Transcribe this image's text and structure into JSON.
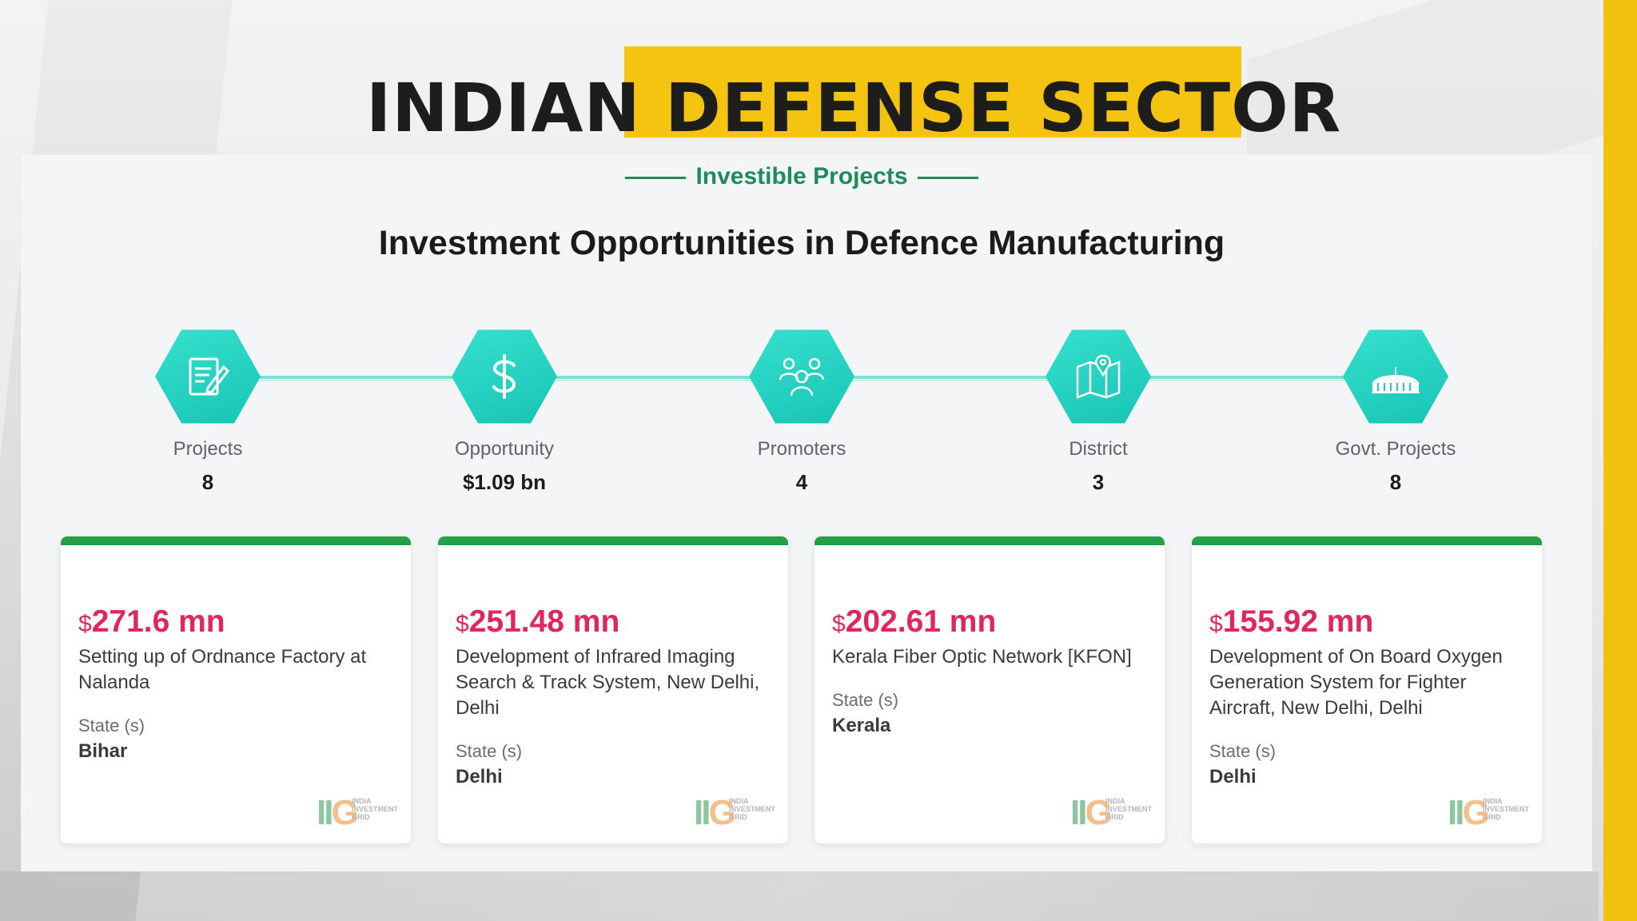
{
  "header": {
    "title": "INDIAN DEFENSE SECTOR",
    "accent_color": "#f5c410"
  },
  "section": {
    "eyebrow": "Investible Projects",
    "heading": "Investment Opportunities in Defence Manufacturing"
  },
  "stats": [
    {
      "label": "Projects",
      "value": "8",
      "icon": "document-edit-icon"
    },
    {
      "label": "Opportunity",
      "value": "$1.09 bn",
      "icon": "dollar-icon"
    },
    {
      "label": "Promoters",
      "value": "4",
      "icon": "people-group-icon"
    },
    {
      "label": "District",
      "value": "3",
      "icon": "map-pin-icon"
    },
    {
      "label": "Govt. Projects",
      "value": "8",
      "icon": "parliament-building-icon"
    }
  ],
  "cards": [
    {
      "currency": "$",
      "amount": "271.6 mn",
      "title": "Setting up of Ordnance Factory at Nalanda",
      "state_label": "State (s)",
      "state": "Bihar"
    },
    {
      "currency": "$",
      "amount": "251.48 mn",
      "title": "Development of Infrared Imaging Search & Track System, New Delhi, Delhi",
      "state_label": "State (s)",
      "state": "Delhi"
    },
    {
      "currency": "$",
      "amount": "202.61 mn",
      "title": "Kerala Fiber Optic Network [KFON]",
      "state_label": "State (s)",
      "state": "Kerala"
    },
    {
      "currency": "$",
      "amount": "155.92 mn",
      "title": "Development of On Board Oxygen Generation System for Fighter Aircraft, New Delhi, Delhi",
      "state_label": "State (s)",
      "state": "Delhi"
    }
  ],
  "watermark": {
    "mark": "IIG",
    "text": "INDIA INVESTMENT GRID"
  },
  "colors": {
    "teal": "#1fcdbd",
    "green": "#24a148",
    "amount": "#e0275c",
    "eyebrow": "#1f8a5a"
  }
}
